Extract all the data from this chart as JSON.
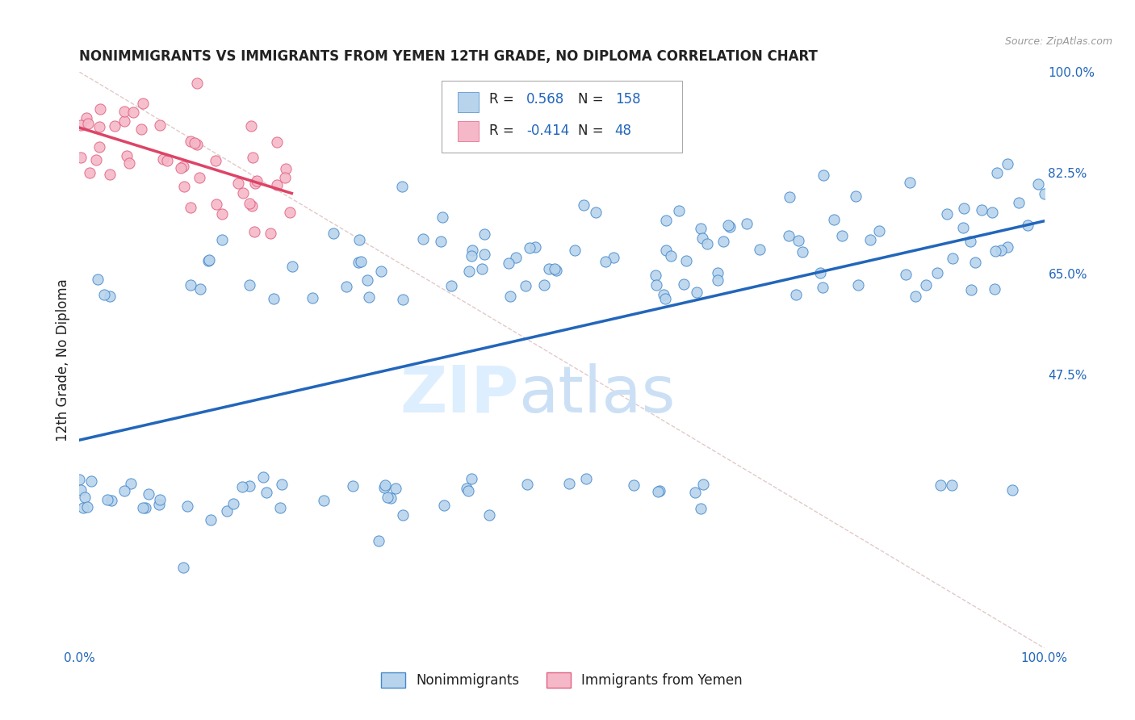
{
  "title": "NONIMMIGRANTS VS IMMIGRANTS FROM YEMEN 12TH GRADE, NO DIPLOMA CORRELATION CHART",
  "source": "Source: ZipAtlas.com",
  "ylabel": "12th Grade, No Diploma",
  "R_blue": 0.568,
  "N_blue": 158,
  "R_pink": -0.414,
  "N_pink": 48,
  "blue_fill": "#b8d4ec",
  "blue_edge": "#4488cc",
  "pink_fill": "#f5b8c8",
  "pink_edge": "#e06080",
  "blue_line": "#2266bb",
  "pink_line": "#dd4466",
  "diag_color": "#ddbbbb",
  "grid_color": "#dddddd",
  "bg_color": "#ffffff",
  "blue_text": "#2266bb",
  "axis_tick_color": "#2266bb",
  "title_color": "#222222",
  "source_color": "#999999",
  "legend_blue": "Nonimmigrants",
  "legend_pink": "Immigrants from Yemen",
  "seed_blue": 12,
  "seed_pink": 99,
  "yticks": [
    0.0,
    0.475,
    0.65,
    0.825,
    1.0
  ],
  "ytick_labels": [
    "",
    "47.5%",
    "65.0%",
    "82.5%",
    "100.0%"
  ],
  "xtick_labels": [
    "0.0%",
    "",
    "",
    "",
    "",
    "",
    "",
    "",
    "",
    "",
    "100.0%"
  ]
}
